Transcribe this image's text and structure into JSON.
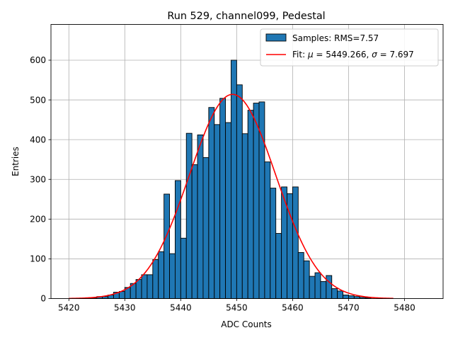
{
  "chart_data": {
    "type": "bar",
    "title": "Run 529, channel099, Pedestal",
    "xlabel": "ADC Counts",
    "ylabel": "Entries",
    "xlim": [
      5416.8,
      5486.9
    ],
    "ylim": [
      0,
      690
    ],
    "xticks": [
      5420,
      5430,
      5440,
      5450,
      5460,
      5470,
      5480
    ],
    "yticks": [
      0,
      100,
      200,
      300,
      400,
      500,
      600
    ],
    "grid": true,
    "legend_position": "top-right",
    "bin_width": 1,
    "bar_color": "#1f77b4",
    "fit_color": "#ff0000",
    "series": [
      {
        "name": "Samples: RMS=7.57",
        "kind": "histogram",
        "bin_starts": [
          5420,
          5421,
          5422,
          5423,
          5424,
          5425,
          5426,
          5427,
          5428,
          5429,
          5430,
          5431,
          5432,
          5433,
          5434,
          5435,
          5436,
          5437,
          5438,
          5439,
          5440,
          5441,
          5442,
          5443,
          5444,
          5445,
          5446,
          5447,
          5448,
          5449,
          5450,
          5451,
          5452,
          5453,
          5454,
          5455,
          5456,
          5457,
          5458,
          5459,
          5460,
          5461,
          5462,
          5463,
          5464,
          5465,
          5466,
          5467,
          5468,
          5469,
          5470,
          5471,
          5472,
          5473,
          5474,
          5475,
          5476,
          5477,
          5478,
          5479,
          5480,
          5481,
          5482,
          5483
        ],
        "values": [
          0,
          0,
          1,
          1,
          2,
          5,
          5,
          9,
          16,
          18,
          28,
          38,
          48,
          60,
          60,
          98,
          118,
          263,
          113,
          297,
          152,
          416,
          337,
          412,
          355,
          481,
          438,
          504,
          443,
          600,
          538,
          415,
          474,
          492,
          495,
          344,
          278,
          164,
          281,
          264,
          281,
          116,
          95,
          56,
          65,
          43,
          58,
          25,
          19,
          9,
          7,
          5,
          3,
          2,
          0,
          1,
          0,
          0,
          0,
          0,
          0,
          0,
          0,
          0
        ]
      },
      {
        "name": "Fit: μ = 5449.266, σ = 7.697",
        "name_prefix": "Fit: ",
        "name_mu": "μ",
        "name_mid": " = 5449.266, ",
        "name_sigma": "σ",
        "name_suffix": " = 7.697",
        "kind": "gaussian",
        "mu": 5449.266,
        "sigma": 7.697,
        "amplitude": 514,
        "x_range": [
          5420,
          5478
        ]
      }
    ]
  }
}
